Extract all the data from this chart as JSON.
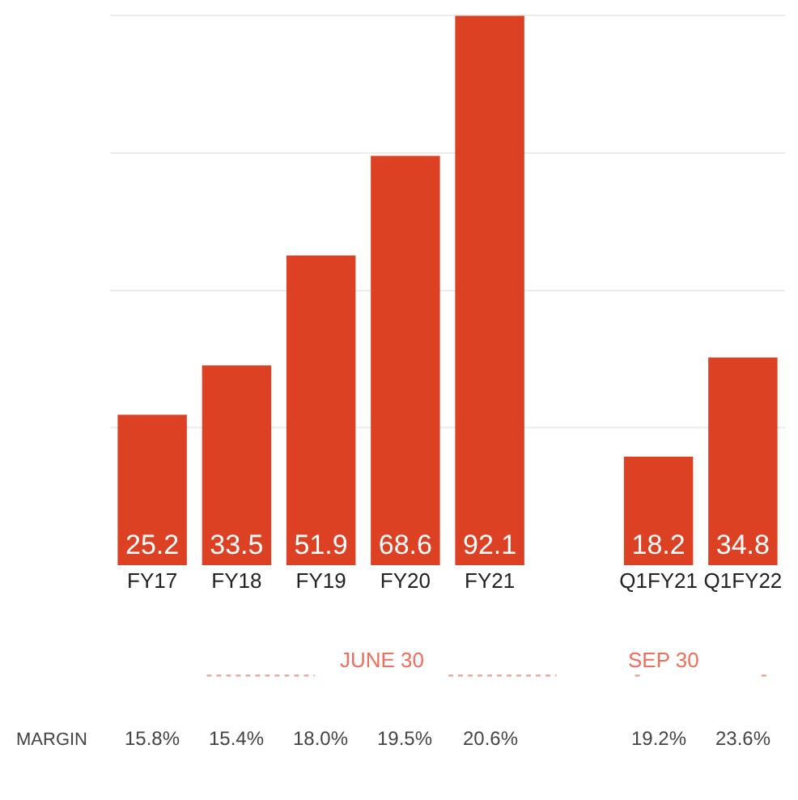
{
  "chart_data": {
    "type": "bar",
    "categories": [
      "FY17",
      "FY18",
      "FY19",
      "FY20",
      "FY21",
      null,
      "Q1FY21",
      "Q1FY22"
    ],
    "values": [
      25.2,
      33.5,
      51.9,
      68.6,
      92.1,
      null,
      18.2,
      34.8
    ],
    "color": "#dd4124",
    "data_labels": true,
    "tick_labels": "x",
    "grid": "y",
    "legend": false,
    "annotations": [
      "JUNE 30",
      "SEP 30",
      "MARGIN",
      "15.8%",
      "15.4%",
      "18.0%",
      "19.5%",
      "20.6%",
      "19.2%",
      "23.6%"
    ]
  }
}
